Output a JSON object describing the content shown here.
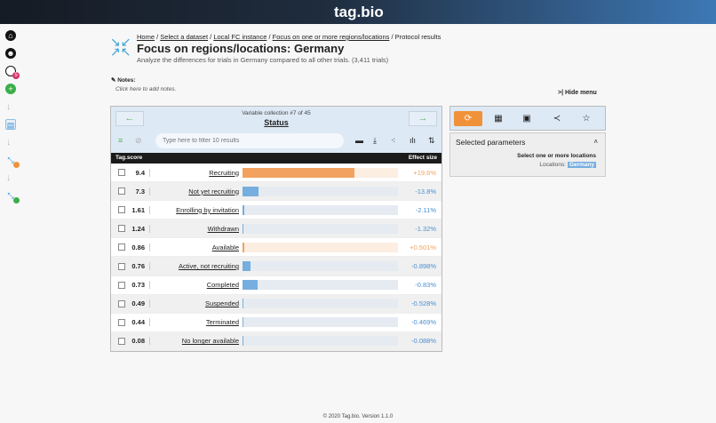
{
  "app": {
    "logo": "tag.bio",
    "footer": "© 2020 Tag.bio. Version 1.1.0"
  },
  "breadcrumb": [
    "Home",
    "Select a dataset",
    "Local FC instance",
    "Focus on one or more regions/locations",
    "Protocol results"
  ],
  "page": {
    "title": "Focus on regions/locations: Germany",
    "subtitle": "Analyze the differences for trials in Germany compared to all other trials. (3,411 trials)",
    "notes_label": "Notes:",
    "notes_placeholder": "Click here to add notes.",
    "hide_menu": "Hide menu"
  },
  "panel": {
    "collection": "Variable collection #7 of 45",
    "title": "Status",
    "filter_placeholder": "Type here to filter 10 results",
    "col_score": "Tag.score",
    "col_effect": "Effect size",
    "rows": [
      {
        "score": "9.4",
        "label": "Recruiting",
        "effect": "+19.6%",
        "fraction": 0.72,
        "dir": "pos"
      },
      {
        "score": "7.3",
        "label": "Not yet recruiting",
        "effect": "-13.8%",
        "fraction": 0.1,
        "dir": "neg"
      },
      {
        "score": "1.61",
        "label": "Enrolling by invitation",
        "effect": "-2.11%",
        "fraction": 0.012,
        "dir": "neg"
      },
      {
        "score": "1.24",
        "label": "Withdrawn",
        "effect": "-1.32%",
        "fraction": 0.006,
        "dir": "neg"
      },
      {
        "score": "0.86",
        "label": "Available",
        "effect": "+0.501%",
        "fraction": 0.012,
        "dir": "pos"
      },
      {
        "score": "0.76",
        "label": "Active, not recruiting",
        "effect": "-0.898%",
        "fraction": 0.05,
        "dir": "neg"
      },
      {
        "score": "0.73",
        "label": "Completed",
        "effect": "-0.83%",
        "fraction": 0.095,
        "dir": "neg"
      },
      {
        "score": "0.49",
        "label": "Suspended",
        "effect": "-0.528%",
        "fraction": 0.003,
        "dir": "neg"
      },
      {
        "score": "0.44",
        "label": "Terminated",
        "effect": "-0.469%",
        "fraction": 0.006,
        "dir": "neg"
      },
      {
        "score": "0.08",
        "label": "No longer available",
        "effect": "-0.088%",
        "fraction": 0.002,
        "dir": "neg"
      }
    ]
  },
  "params": {
    "title": "Selected parameters",
    "heading": "Select one or more locations",
    "key": "Locations:",
    "value": "Germany"
  },
  "colors": {
    "pos": "#f2a25e",
    "pos_track": "#fdeee2",
    "neg": "#77aee0",
    "neg_text": "#4a8fd0",
    "accent": "#f0923a"
  },
  "sidebar": {
    "badge": "5"
  }
}
